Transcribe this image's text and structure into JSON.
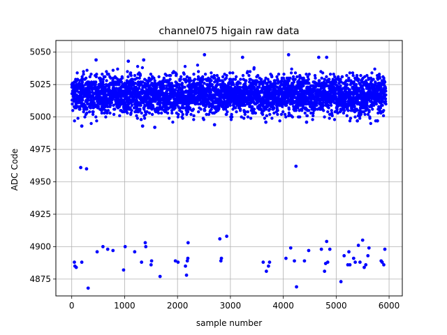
{
  "chart_data": {
    "type": "scatter",
    "title": "channel075 higain raw data",
    "xlabel": "sample number",
    "ylabel": "ADC Code",
    "xlim": [
      -300,
      6250
    ],
    "ylim": [
      4862,
      5059
    ],
    "xticks": [
      0,
      1000,
      2000,
      3000,
      4000,
      5000,
      6000
    ],
    "yticks": [
      4875,
      4900,
      4925,
      4950,
      4975,
      5000,
      5025,
      5050
    ],
    "grid": true,
    "marker_color": "#0000ff",
    "sample_range": [
      0,
      5940
    ],
    "main_band": {
      "center": 5017,
      "dense_range": [
        5000,
        5035
      ],
      "sparse_range": [
        4993,
        5048
      ],
      "notes": "approximately 5940 samples forming a dense band"
    },
    "points": [
      {
        "x": 50,
        "y": 4888
      },
      {
        "x": 60,
        "y": 4885
      },
      {
        "x": 85,
        "y": 4884
      },
      {
        "x": 190,
        "y": 4888
      },
      {
        "x": 310,
        "y": 4868
      },
      {
        "x": 480,
        "y": 4896
      },
      {
        "x": 590,
        "y": 4900
      },
      {
        "x": 680,
        "y": 4898
      },
      {
        "x": 780,
        "y": 4897
      },
      {
        "x": 980,
        "y": 4882
      },
      {
        "x": 1010,
        "y": 4900
      },
      {
        "x": 1190,
        "y": 4896
      },
      {
        "x": 1320,
        "y": 4888
      },
      {
        "x": 1390,
        "y": 4903
      },
      {
        "x": 1400,
        "y": 4900
      },
      {
        "x": 1500,
        "y": 4886
      },
      {
        "x": 1510,
        "y": 4889
      },
      {
        "x": 1670,
        "y": 4877
      },
      {
        "x": 1960,
        "y": 4889
      },
      {
        "x": 2010,
        "y": 4888
      },
      {
        "x": 2150,
        "y": 4885
      },
      {
        "x": 2170,
        "y": 4878
      },
      {
        "x": 2185,
        "y": 4889
      },
      {
        "x": 2195,
        "y": 4891
      },
      {
        "x": 2200,
        "y": 4903
      },
      {
        "x": 2800,
        "y": 4906
      },
      {
        "x": 2820,
        "y": 4889
      },
      {
        "x": 2830,
        "y": 4891
      },
      {
        "x": 2930,
        "y": 4908
      },
      {
        "x": 3620,
        "y": 4888
      },
      {
        "x": 3680,
        "y": 4881
      },
      {
        "x": 3720,
        "y": 4885
      },
      {
        "x": 3740,
        "y": 4888
      },
      {
        "x": 4050,
        "y": 4891
      },
      {
        "x": 4140,
        "y": 4899
      },
      {
        "x": 4210,
        "y": 4889
      },
      {
        "x": 4250,
        "y": 4869
      },
      {
        "x": 4400,
        "y": 4889
      },
      {
        "x": 4480,
        "y": 4897
      },
      {
        "x": 4720,
        "y": 4898
      },
      {
        "x": 4780,
        "y": 4881
      },
      {
        "x": 4800,
        "y": 4887
      },
      {
        "x": 4820,
        "y": 4904
      },
      {
        "x": 4840,
        "y": 4888
      },
      {
        "x": 4880,
        "y": 4898
      },
      {
        "x": 5090,
        "y": 4873
      },
      {
        "x": 5150,
        "y": 4893
      },
      {
        "x": 5220,
        "y": 4886
      },
      {
        "x": 5240,
        "y": 4896
      },
      {
        "x": 5260,
        "y": 4886
      },
      {
        "x": 5330,
        "y": 4891
      },
      {
        "x": 5360,
        "y": 4888
      },
      {
        "x": 5420,
        "y": 4901
      },
      {
        "x": 5450,
        "y": 4888
      },
      {
        "x": 5500,
        "y": 4905
      },
      {
        "x": 5530,
        "y": 4884
      },
      {
        "x": 5560,
        "y": 4886
      },
      {
        "x": 5600,
        "y": 4893
      },
      {
        "x": 5620,
        "y": 4899
      },
      {
        "x": 5850,
        "y": 4889
      },
      {
        "x": 5870,
        "y": 4888
      },
      {
        "x": 5900,
        "y": 4886
      },
      {
        "x": 5920,
        "y": 4898
      },
      {
        "x": 170,
        "y": 4961
      },
      {
        "x": 280,
        "y": 4960
      },
      {
        "x": 4240,
        "y": 4962
      },
      {
        "x": 2510,
        "y": 5048
      },
      {
        "x": 3230,
        "y": 5046
      },
      {
        "x": 4100,
        "y": 5048
      },
      {
        "x": 4670,
        "y": 5046
      },
      {
        "x": 4820,
        "y": 5046
      },
      {
        "x": 1360,
        "y": 5044
      },
      {
        "x": 460,
        "y": 5044
      },
      {
        "x": 1070,
        "y": 5043
      },
      {
        "x": 190,
        "y": 4993
      },
      {
        "x": 1570,
        "y": 4992
      },
      {
        "x": 1340,
        "y": 4993
      },
      {
        "x": 2700,
        "y": 4994
      },
      {
        "x": 3670,
        "y": 4996
      },
      {
        "x": 4440,
        "y": 4996
      },
      {
        "x": 5400,
        "y": 4997
      },
      {
        "x": 5780,
        "y": 4997
      }
    ]
  }
}
